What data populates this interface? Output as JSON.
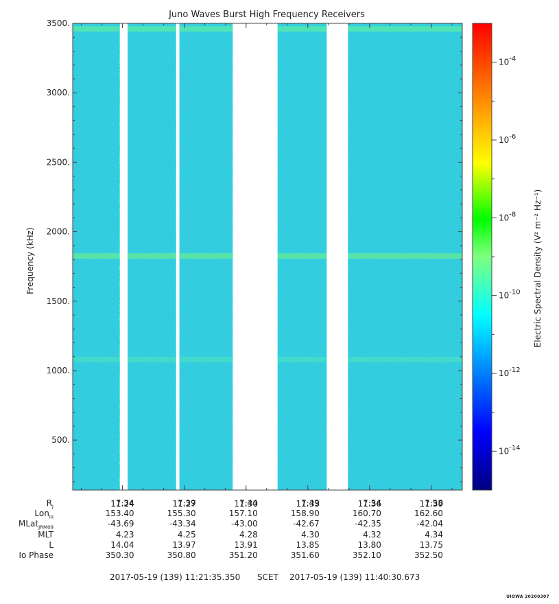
{
  "chart_data": {
    "type": "heatmap",
    "title": "Juno Waves Burst High Frequency Receivers",
    "ylabel": "Frequency (kHz)",
    "colorbar_label": "Electric Spectral Density (V² m⁻² Hz⁻¹)",
    "y_ticks": [
      "500.",
      "1000.",
      "1500.",
      "2000.",
      "2500.",
      "3000.",
      "3500."
    ],
    "y_tick_values": [
      500,
      1000,
      1500,
      2000,
      2500,
      3000,
      3500
    ],
    "ylim": [
      140,
      3500
    ],
    "x_ticks": [
      "11:24",
      "11:27",
      "11:30",
      "11:33",
      "11:36",
      "11:39"
    ],
    "x_start": "11:21:35",
    "x_end": "11:40:30",
    "colorbar_ticks": [
      {
        "base": "10",
        "exp": "-4",
        "value": -4
      },
      {
        "base": "10",
        "exp": "-6",
        "value": -6
      },
      {
        "base": "10",
        "exp": "-8",
        "value": -8
      },
      {
        "base": "10",
        "exp": "-10",
        "value": -10
      },
      {
        "base": "10",
        "exp": "-12",
        "value": -12
      },
      {
        "base": "10",
        "exp": "-14",
        "value": -14
      }
    ],
    "colorbar_range_log10": [
      -15,
      -3
    ],
    "colors": [
      "#00007f",
      "#0000ff",
      "#007fff",
      "#00ffff",
      "#7fff7f",
      "#00ff00",
      "#ffff00",
      "#ff7f00",
      "#ff0000"
    ],
    "background_color": "#2fd6d6",
    "background_level_log10": -11.6,
    "data_segments": [
      {
        "start": "11:21:35",
        "end": "11:23:52"
      },
      {
        "start": "11:24:15",
        "end": "11:26:36"
      },
      {
        "start": "11:26:46",
        "end": "11:29:21"
      },
      {
        "start": "11:31:32",
        "end": "11:33:55"
      },
      {
        "start": "11:34:57",
        "end": "11:40:30"
      }
    ],
    "emission_bands": [
      {
        "frequency_khz": 1825,
        "level_log10": -10.8,
        "color": "#5ee8a0"
      },
      {
        "frequency_khz": 3460,
        "level_log10": -10.9,
        "color": "#55e6b0"
      },
      {
        "frequency_khz": 1080,
        "level_log10": -11.3,
        "color": "#45dcc8"
      }
    ]
  },
  "ephemeris": {
    "rows": [
      {
        "label": "R",
        "sub": "J",
        "values": [
          "7.34",
          "7.39",
          "7.44",
          "7.49",
          "7.54",
          "7.58"
        ]
      },
      {
        "label": "Lon",
        "sub": "III",
        "values": [
          "153.40",
          "155.30",
          "157.10",
          "158.90",
          "160.70",
          "162.60"
        ]
      },
      {
        "label": "MLat",
        "sub": "JRM09",
        "values": [
          "-43.69",
          "-43.34",
          "-43.00",
          "-42.67",
          "-42.35",
          "-42.04"
        ]
      },
      {
        "label": "MLT",
        "sub": "",
        "values": [
          "4.23",
          "4.25",
          "4.28",
          "4.30",
          "4.32",
          "4.34"
        ]
      },
      {
        "label": "L",
        "sub": "",
        "values": [
          "14.04",
          "13.97",
          "13.91",
          "13.85",
          "13.80",
          "13.75"
        ]
      },
      {
        "label": "Io Phase",
        "sub": "",
        "values": [
          "350.30",
          "350.80",
          "351.20",
          "351.60",
          "352.10",
          "352.50"
        ]
      }
    ]
  },
  "scet": {
    "start": "2017-05-19 (139) 11:21:35.350",
    "label": "SCET",
    "end": "2017-05-19 (139) 11:40:30.673"
  },
  "stamp": "UIOWA 20200307"
}
